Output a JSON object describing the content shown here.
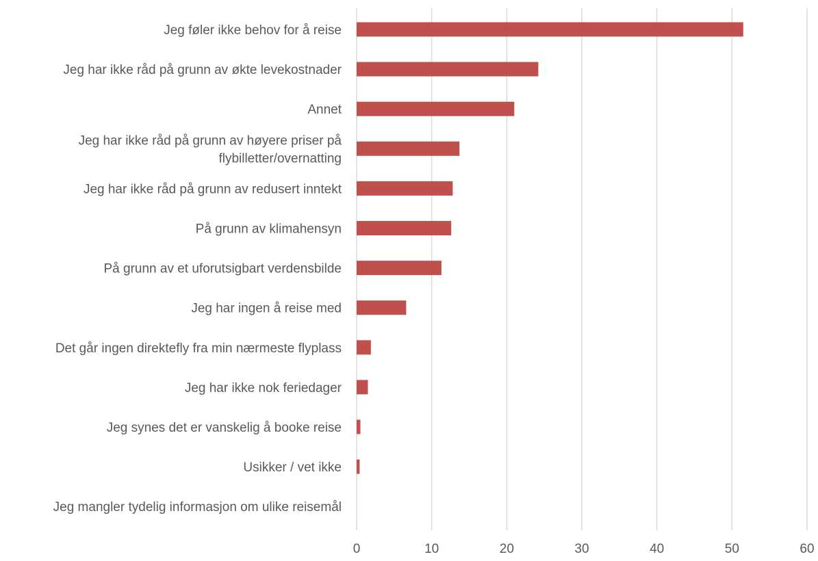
{
  "chart_data": {
    "type": "bar",
    "orientation": "horizontal",
    "categories": [
      "Jeg føler ikke behov for å reise",
      "Jeg har ikke råd på grunn av økte levekostnader",
      "Annet",
      "Jeg har ikke råd på grunn av høyere priser på flybilletter/overnatting",
      "Jeg har ikke råd på grunn av redusert inntekt",
      "På grunn av klimahensyn",
      "På grunn av et uforutsigbart verdensbilde",
      "Jeg har ingen å reise med",
      "Det går ingen direktefly fra min nærmeste flyplass",
      "Jeg har ikke nok feriedager",
      "Jeg synes det er vanskelig å booke reise",
      "Usikker / vet ikke",
      "Jeg mangler tydelig informasjon om ulike reisemål"
    ],
    "category_lines": [
      [
        "Jeg føler ikke behov for å reise"
      ],
      [
        "Jeg har ikke råd på grunn av økte levekostnader"
      ],
      [
        "Annet"
      ],
      [
        "Jeg har ikke råd på grunn av høyere priser på",
        "flybilletter/overnatting"
      ],
      [
        "Jeg har ikke råd på grunn av redusert inntekt"
      ],
      [
        "På grunn av klimahensyn"
      ],
      [
        "På grunn av et uforutsigbart verdensbilde"
      ],
      [
        "Jeg har ingen å reise med"
      ],
      [
        "Det går ingen direktefly fra min nærmeste flyplass"
      ],
      [
        "Jeg har ikke nok feriedager"
      ],
      [
        "Jeg synes det er vanskelig å booke reise"
      ],
      [
        "Usikker / vet ikke"
      ],
      [
        "Jeg mangler tydelig informasjon om ulike reisemål"
      ]
    ],
    "values": [
      51.5,
      24.2,
      21.0,
      13.7,
      12.8,
      12.6,
      11.3,
      6.6,
      1.9,
      1.5,
      0.5,
      0.4,
      0
    ],
    "xlim": [
      0,
      60
    ],
    "xticks": [
      "0",
      "10",
      "20",
      "30",
      "40",
      "50",
      "60"
    ],
    "xtick_values": [
      0,
      10,
      20,
      30,
      40,
      50,
      60
    ],
    "title": "",
    "xlabel": "",
    "ylabel": "",
    "grid": "vertical",
    "legend": "none",
    "colors": {
      "bar": "#c0504d",
      "grid": "#d9d9d9",
      "text": "#595959"
    }
  }
}
